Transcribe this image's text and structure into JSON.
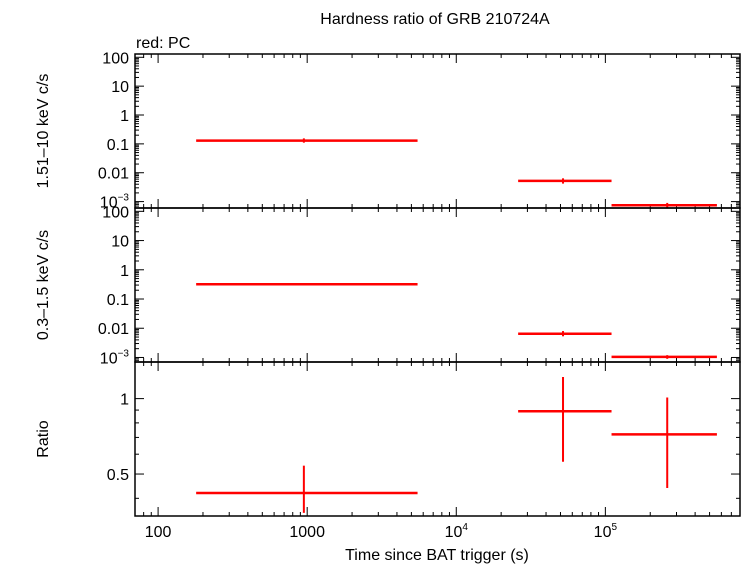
{
  "chart_data": {
    "type": "scatter",
    "title": "Hardness ratio of GRB 210724A",
    "legend_text": "red: PC",
    "xlabel": "Time since BAT trigger (s)",
    "x_scale": "log",
    "xlim": [
      70,
      800000
    ],
    "x_ticks": [
      {
        "value": 100,
        "label": "100",
        "sup": ""
      },
      {
        "value": 1000,
        "label": "1000",
        "sup": ""
      },
      {
        "value": 10000,
        "label": "10",
        "sup": "4"
      },
      {
        "value": 100000,
        "label": "10",
        "sup": "5"
      }
    ],
    "series_color": "#ff0000",
    "panels": [
      {
        "name": "hard",
        "ylabel": "1.51–10 keV c/s",
        "y_scale": "log",
        "ylim": [
          0.0006,
          130
        ],
        "y_ticks": [
          {
            "value": 100,
            "label": "100",
            "sup": ""
          },
          {
            "value": 10,
            "label": "10",
            "sup": ""
          },
          {
            "value": 1,
            "label": "1",
            "sup": ""
          },
          {
            "value": 0.1,
            "label": "0.1",
            "sup": ""
          },
          {
            "value": 0.01,
            "label": "0.01",
            "sup": ""
          },
          {
            "value": 0.001,
            "label": "10",
            "sup": "−3"
          }
        ],
        "points": [
          {
            "x": 950,
            "xlo": 180,
            "xhi": 5500,
            "y": 0.13,
            "ylo": 0.11,
            "yhi": 0.155
          },
          {
            "x": 52000,
            "xlo": 26000,
            "xhi": 110000,
            "y": 0.0052,
            "ylo": 0.0042,
            "yhi": 0.0064
          },
          {
            "x": 260000,
            "xlo": 110000,
            "xhi": 560000,
            "y": 0.00075,
            "ylo": 0.00062,
            "yhi": 0.0009
          }
        ]
      },
      {
        "name": "soft",
        "ylabel": "0.3–1.5 keV c/s",
        "y_scale": "log",
        "ylim": [
          0.0007,
          130
        ],
        "y_ticks": [
          {
            "value": 100,
            "label": "100",
            "sup": ""
          },
          {
            "value": 10,
            "label": "10",
            "sup": ""
          },
          {
            "value": 1,
            "label": "1",
            "sup": ""
          },
          {
            "value": 0.1,
            "label": "0.1",
            "sup": ""
          },
          {
            "value": 0.01,
            "label": "0.01",
            "sup": ""
          },
          {
            "value": 0.001,
            "label": "10",
            "sup": "−3"
          }
        ],
        "points": [
          {
            "x": 950,
            "xlo": 180,
            "xhi": 5500,
            "y": 0.32,
            "ylo": 0.29,
            "yhi": 0.35
          },
          {
            "x": 52000,
            "xlo": 26000,
            "xhi": 110000,
            "y": 0.0065,
            "ylo": 0.0053,
            "yhi": 0.008
          },
          {
            "x": 260000,
            "xlo": 110000,
            "xhi": 560000,
            "y": 0.00105,
            "ylo": 0.0009,
            "yhi": 0.0012
          }
        ]
      },
      {
        "name": "ratio",
        "ylabel": "Ratio",
        "y_scale": "log",
        "ylim": [
          0.34,
          1.4
        ],
        "y_ticks": [
          {
            "value": 1,
            "label": "1",
            "sup": ""
          },
          {
            "value": 0.5,
            "label": "0.5",
            "sup": ""
          }
        ],
        "points": [
          {
            "x": 950,
            "xlo": 180,
            "xhi": 5500,
            "y": 0.42,
            "ylo": 0.35,
            "yhi": 0.54
          },
          {
            "x": 52000,
            "xlo": 26000,
            "xhi": 110000,
            "y": 0.89,
            "ylo": 0.56,
            "yhi": 1.22
          },
          {
            "x": 260000,
            "xlo": 110000,
            "xhi": 560000,
            "y": 0.72,
            "ylo": 0.44,
            "yhi": 1.01
          }
        ]
      }
    ]
  }
}
